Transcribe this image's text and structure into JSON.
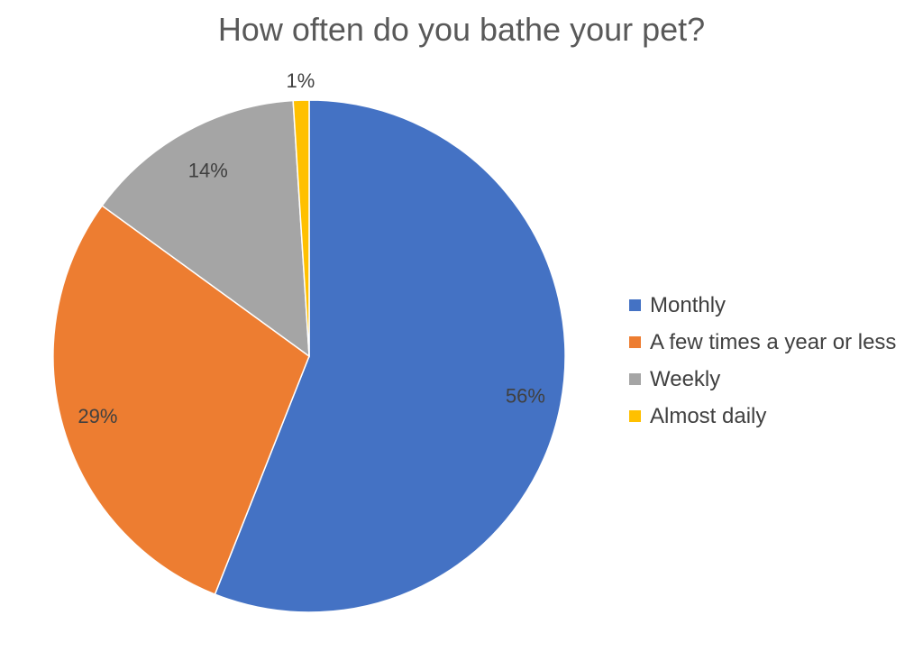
{
  "chart_data": {
    "type": "pie",
    "title": "How often do you bathe your pet?",
    "legend_position": "right",
    "slices": [
      {
        "label": "Monthly",
        "value": 56,
        "display": "56%",
        "color": "#4472C4"
      },
      {
        "label": "A few times a year or less",
        "value": 29,
        "display": "29%",
        "color": "#ED7D31"
      },
      {
        "label": "Weekly",
        "value": 14,
        "display": "14%",
        "color": "#A5A5A5"
      },
      {
        "label": "Almost daily",
        "value": 1,
        "display": "1%",
        "color": "#FFC000"
      }
    ]
  }
}
